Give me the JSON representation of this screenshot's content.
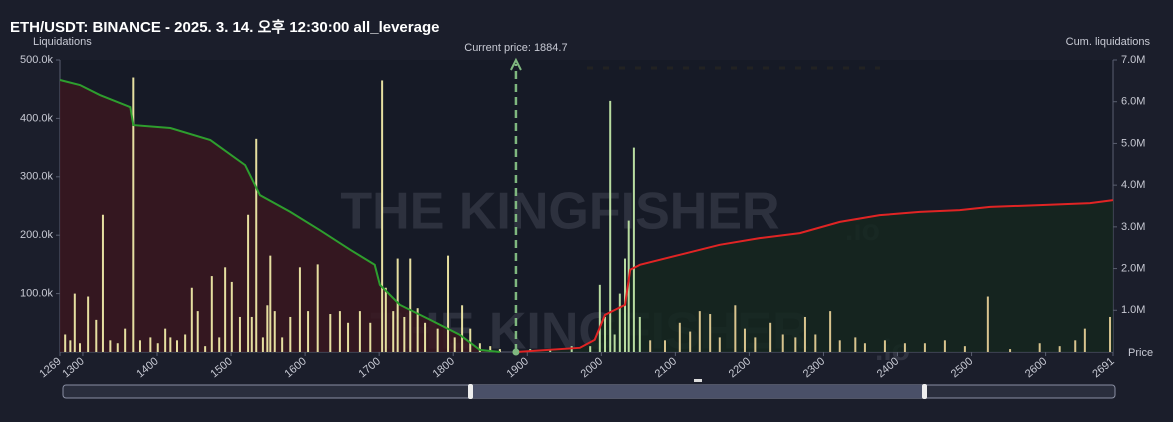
{
  "chart_data": {
    "type": "bar",
    "title": "ETH/USDT: BINANCE - 2025. 3. 14. 오후 12:30:00 all_leverage",
    "y_label": "Liquidations",
    "y2_label": "Cum. liquidations",
    "x_label": "Price",
    "watermark": "THE KINGFISHER",
    "watermark_suffix": ".io",
    "current_price": {
      "value": 1884.7,
      "label": "Current price: 1884.7"
    },
    "xlim": [
      1269,
      2691
    ],
    "xticks": [
      1269,
      1300,
      1400,
      1500,
      1600,
      1700,
      1800,
      1900,
      2000,
      2100,
      2200,
      2300,
      2400,
      2500,
      2600,
      2691
    ],
    "ylim": [
      0,
      500000
    ],
    "yticks": [
      {
        "value": 100000,
        "label": "100.0k"
      },
      {
        "value": 200000,
        "label": "200.0k"
      },
      {
        "value": 300000,
        "label": "300.0k"
      },
      {
        "value": 400000,
        "label": "400.0k"
      },
      {
        "value": 500000,
        "label": "500.0k"
      }
    ],
    "y2lim": [
      0,
      7000000
    ],
    "y2ticks": [
      {
        "value": 1000000,
        "label": "1.0M"
      },
      {
        "value": 2000000,
        "label": "2.0M"
      },
      {
        "value": 3000000,
        "label": "3.0M"
      },
      {
        "value": 4000000,
        "label": "4.0M"
      },
      {
        "value": 5000000,
        "label": "5.0M"
      },
      {
        "value": 6000000,
        "label": "6.0M"
      },
      {
        "value": 7000000,
        "label": "7.0M"
      }
    ],
    "bar_groups": [
      {
        "color": "#e6dfa0",
        "x": [
          1276,
          1283,
          1289,
          1296,
          1307,
          1318,
          1327,
          1337,
          1347,
          1357,
          1368,
          1377,
          1391,
          1401,
          1411,
          1418,
          1427,
          1438,
          1447,
          1455,
          1465,
          1474,
          1484,
          1492,
          1501,
          1512,
          1523,
          1528,
          1534,
          1543,
          1549,
          1553,
          1559,
          1569,
          1580,
          1593,
          1604,
          1617,
          1634,
          1647,
          1658,
          1674,
          1688,
          1704,
          1709,
          1719,
          1725,
          1734,
          1742,
          1752,
          1762,
          1779,
          1793,
          1802,
          1812,
          1823,
          1836,
          1850,
          1863
        ],
        "values": [
          30000,
          20000,
          100000,
          15000,
          95000,
          55000,
          235000,
          20000,
          15000,
          40000,
          470000,
          20000,
          25000,
          15000,
          40000,
          25000,
          20000,
          30000,
          110000,
          70000,
          10000,
          130000,
          25000,
          145000,
          120000,
          60000,
          235000,
          60000,
          365000,
          25000,
          80000,
          165000,
          70000,
          25000,
          60000,
          145000,
          70000,
          150000,
          65000,
          70000,
          50000,
          70000,
          50000,
          465000,
          110000,
          70000,
          160000,
          60000,
          160000,
          75000,
          50000,
          40000,
          165000,
          25000,
          80000,
          40000,
          15000,
          10000,
          5000
        ]
      },
      {
        "color": "#b8dca0",
        "x": [
          1904,
          1931,
          1960,
          1985,
          1998,
          2005,
          2012,
          2018,
          2025,
          2032,
          2037,
          2044,
          2052
        ],
        "values": [
          5000,
          5000,
          10000,
          10000,
          115000,
          60000,
          430000,
          30000,
          100000,
          160000,
          225000,
          350000,
          60000
        ]
      },
      {
        "color": "#d8c48e",
        "x": [
          2066,
          2086,
          2106,
          2120,
          2133,
          2147,
          2160,
          2181,
          2194,
          2208,
          2228,
          2245,
          2262,
          2275,
          2289,
          2309,
          2322,
          2343,
          2356,
          2383,
          2410,
          2437,
          2464,
          2491,
          2522,
          2552,
          2592,
          2619,
          2640,
          2653,
          2687
        ],
        "values": [
          20000,
          20000,
          50000,
          35000,
          70000,
          65000,
          25000,
          80000,
          40000,
          25000,
          50000,
          30000,
          25000,
          60000,
          30000,
          70000,
          20000,
          25000,
          15000,
          20000,
          15000,
          15000,
          20000,
          10000,
          95000,
          5000,
          15000,
          10000,
          20000,
          40000,
          60000
        ]
      }
    ],
    "lines": [
      {
        "color": "#2e9e2e",
        "fill": "#3a1820",
        "axis": "y2",
        "x": [
          1269,
          1296,
          1323,
          1364,
          1368,
          1418,
          1472,
          1519,
          1539,
          1580,
          1620,
          1661,
          1694,
          1701,
          1728,
          1769,
          1809,
          1836,
          1863
        ],
        "values": [
          6520000,
          6400000,
          6160000,
          5870000,
          5440000,
          5370000,
          5080000,
          4480000,
          3760000,
          3360000,
          2920000,
          2450000,
          2090000,
          1610000,
          1130000,
          770000,
          410000,
          50000,
          0
        ]
      },
      {
        "color": "#e02424",
        "fill": "#15271f",
        "axis": "y2",
        "x": [
          1885,
          1971,
          1991,
          2005,
          2032,
          2039,
          2052,
          2106,
          2160,
          2214,
          2268,
          2322,
          2376,
          2430,
          2484,
          2525,
          2592,
          2660,
          2691
        ],
        "values": [
          0,
          100000,
          290000,
          890000,
          1130000,
          1970000,
          2090000,
          2330000,
          2570000,
          2730000,
          2850000,
          3120000,
          3280000,
          3360000,
          3400000,
          3480000,
          3520000,
          3570000,
          3640000
        ]
      }
    ]
  }
}
